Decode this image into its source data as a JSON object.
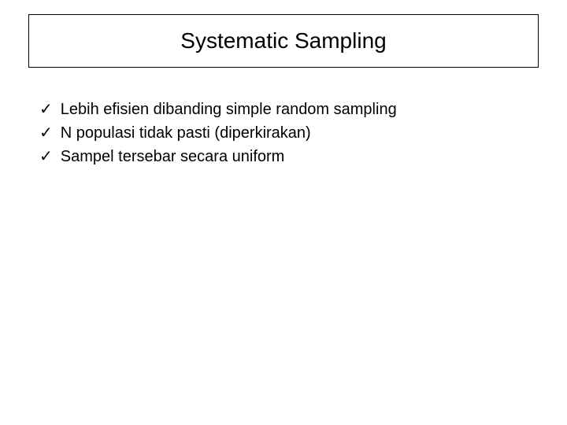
{
  "title": "Systematic Sampling",
  "bullets": [
    {
      "mark": "✓",
      "text": "Lebih efisien dibanding simple random sampling"
    },
    {
      "mark": "✓",
      "text": "N populasi tidak pasti (diperkirakan)"
    },
    {
      "mark": "✓",
      "text": "Sampel tersebar secara uniform"
    }
  ],
  "styling": {
    "background_color": "#ffffff",
    "text_color": "#000000",
    "border_color": "#000000",
    "title_fontsize": 28,
    "bullet_fontsize": 20,
    "font_family": "Arial, Helvetica, sans-serif"
  }
}
